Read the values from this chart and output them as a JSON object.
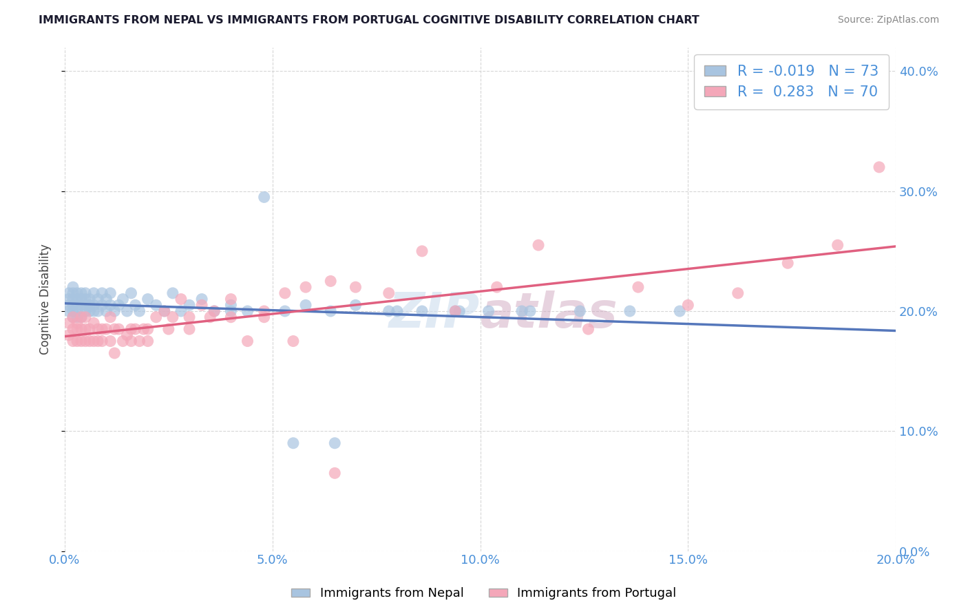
{
  "title": "IMMIGRANTS FROM NEPAL VS IMMIGRANTS FROM PORTUGAL COGNITIVE DISABILITY CORRELATION CHART",
  "source": "Source: ZipAtlas.com",
  "ylabel": "Cognitive Disability",
  "xlabel_nepal": "Immigrants from Nepal",
  "xlabel_portugal": "Immigrants from Portugal",
  "nepal_R": -0.019,
  "nepal_N": 73,
  "portugal_R": 0.283,
  "portugal_N": 70,
  "xlim": [
    0.0,
    0.2
  ],
  "ylim": [
    0.0,
    0.42
  ],
  "nepal_color": "#a8c4e0",
  "portugal_color": "#f4a7b9",
  "nepal_line_color": "#5577bb",
  "portugal_line_color": "#e06080",
  "grid_color": "#cccccc",
  "nepal_x": [
    0.001,
    0.001,
    0.001,
    0.001,
    0.002,
    0.002,
    0.002,
    0.002,
    0.002,
    0.002,
    0.003,
    0.003,
    0.003,
    0.003,
    0.003,
    0.004,
    0.004,
    0.004,
    0.004,
    0.005,
    0.005,
    0.005,
    0.005,
    0.006,
    0.006,
    0.006,
    0.007,
    0.007,
    0.007,
    0.008,
    0.008,
    0.009,
    0.009,
    0.01,
    0.01,
    0.011,
    0.011,
    0.012,
    0.013,
    0.014,
    0.015,
    0.016,
    0.017,
    0.018,
    0.02,
    0.022,
    0.024,
    0.026,
    0.028,
    0.03,
    0.033,
    0.036,
    0.04,
    0.044,
    0.048,
    0.053,
    0.058,
    0.064,
    0.07,
    0.078,
    0.086,
    0.094,
    0.102,
    0.112,
    0.124,
    0.136,
    0.148,
    0.04,
    0.055,
    0.065,
    0.08,
    0.095,
    0.11
  ],
  "nepal_y": [
    0.205,
    0.21,
    0.2,
    0.215,
    0.205,
    0.21,
    0.195,
    0.215,
    0.2,
    0.22,
    0.205,
    0.195,
    0.21,
    0.215,
    0.2,
    0.205,
    0.21,
    0.195,
    0.215,
    0.2,
    0.21,
    0.205,
    0.215,
    0.2,
    0.21,
    0.205,
    0.2,
    0.215,
    0.205,
    0.21,
    0.2,
    0.205,
    0.215,
    0.2,
    0.21,
    0.205,
    0.215,
    0.2,
    0.205,
    0.21,
    0.2,
    0.215,
    0.205,
    0.2,
    0.21,
    0.205,
    0.2,
    0.215,
    0.2,
    0.205,
    0.21,
    0.2,
    0.205,
    0.2,
    0.295,
    0.2,
    0.205,
    0.2,
    0.205,
    0.2,
    0.2,
    0.2,
    0.2,
    0.2,
    0.2,
    0.2,
    0.2,
    0.2,
    0.09,
    0.09,
    0.2,
    0.2,
    0.2
  ],
  "portugal_x": [
    0.001,
    0.001,
    0.002,
    0.002,
    0.002,
    0.003,
    0.003,
    0.003,
    0.004,
    0.004,
    0.004,
    0.005,
    0.005,
    0.005,
    0.006,
    0.006,
    0.007,
    0.007,
    0.008,
    0.008,
    0.009,
    0.009,
    0.01,
    0.011,
    0.011,
    0.012,
    0.013,
    0.014,
    0.015,
    0.016,
    0.017,
    0.018,
    0.019,
    0.02,
    0.022,
    0.024,
    0.026,
    0.028,
    0.03,
    0.033,
    0.036,
    0.04,
    0.044,
    0.048,
    0.053,
    0.058,
    0.064,
    0.07,
    0.078,
    0.086,
    0.094,
    0.104,
    0.114,
    0.126,
    0.138,
    0.15,
    0.162,
    0.174,
    0.186,
    0.196,
    0.012,
    0.016,
    0.02,
    0.025,
    0.03,
    0.035,
    0.04,
    0.048,
    0.055,
    0.065
  ],
  "portugal_y": [
    0.18,
    0.19,
    0.185,
    0.195,
    0.175,
    0.185,
    0.19,
    0.175,
    0.185,
    0.195,
    0.175,
    0.185,
    0.175,
    0.195,
    0.185,
    0.175,
    0.19,
    0.175,
    0.185,
    0.175,
    0.185,
    0.175,
    0.185,
    0.175,
    0.195,
    0.185,
    0.185,
    0.175,
    0.18,
    0.185,
    0.185,
    0.175,
    0.185,
    0.185,
    0.195,
    0.2,
    0.195,
    0.21,
    0.195,
    0.205,
    0.2,
    0.21,
    0.175,
    0.195,
    0.215,
    0.22,
    0.225,
    0.22,
    0.215,
    0.25,
    0.2,
    0.22,
    0.255,
    0.185,
    0.22,
    0.205,
    0.215,
    0.24,
    0.255,
    0.32,
    0.165,
    0.175,
    0.175,
    0.185,
    0.185,
    0.195,
    0.195,
    0.2,
    0.175,
    0.065
  ]
}
